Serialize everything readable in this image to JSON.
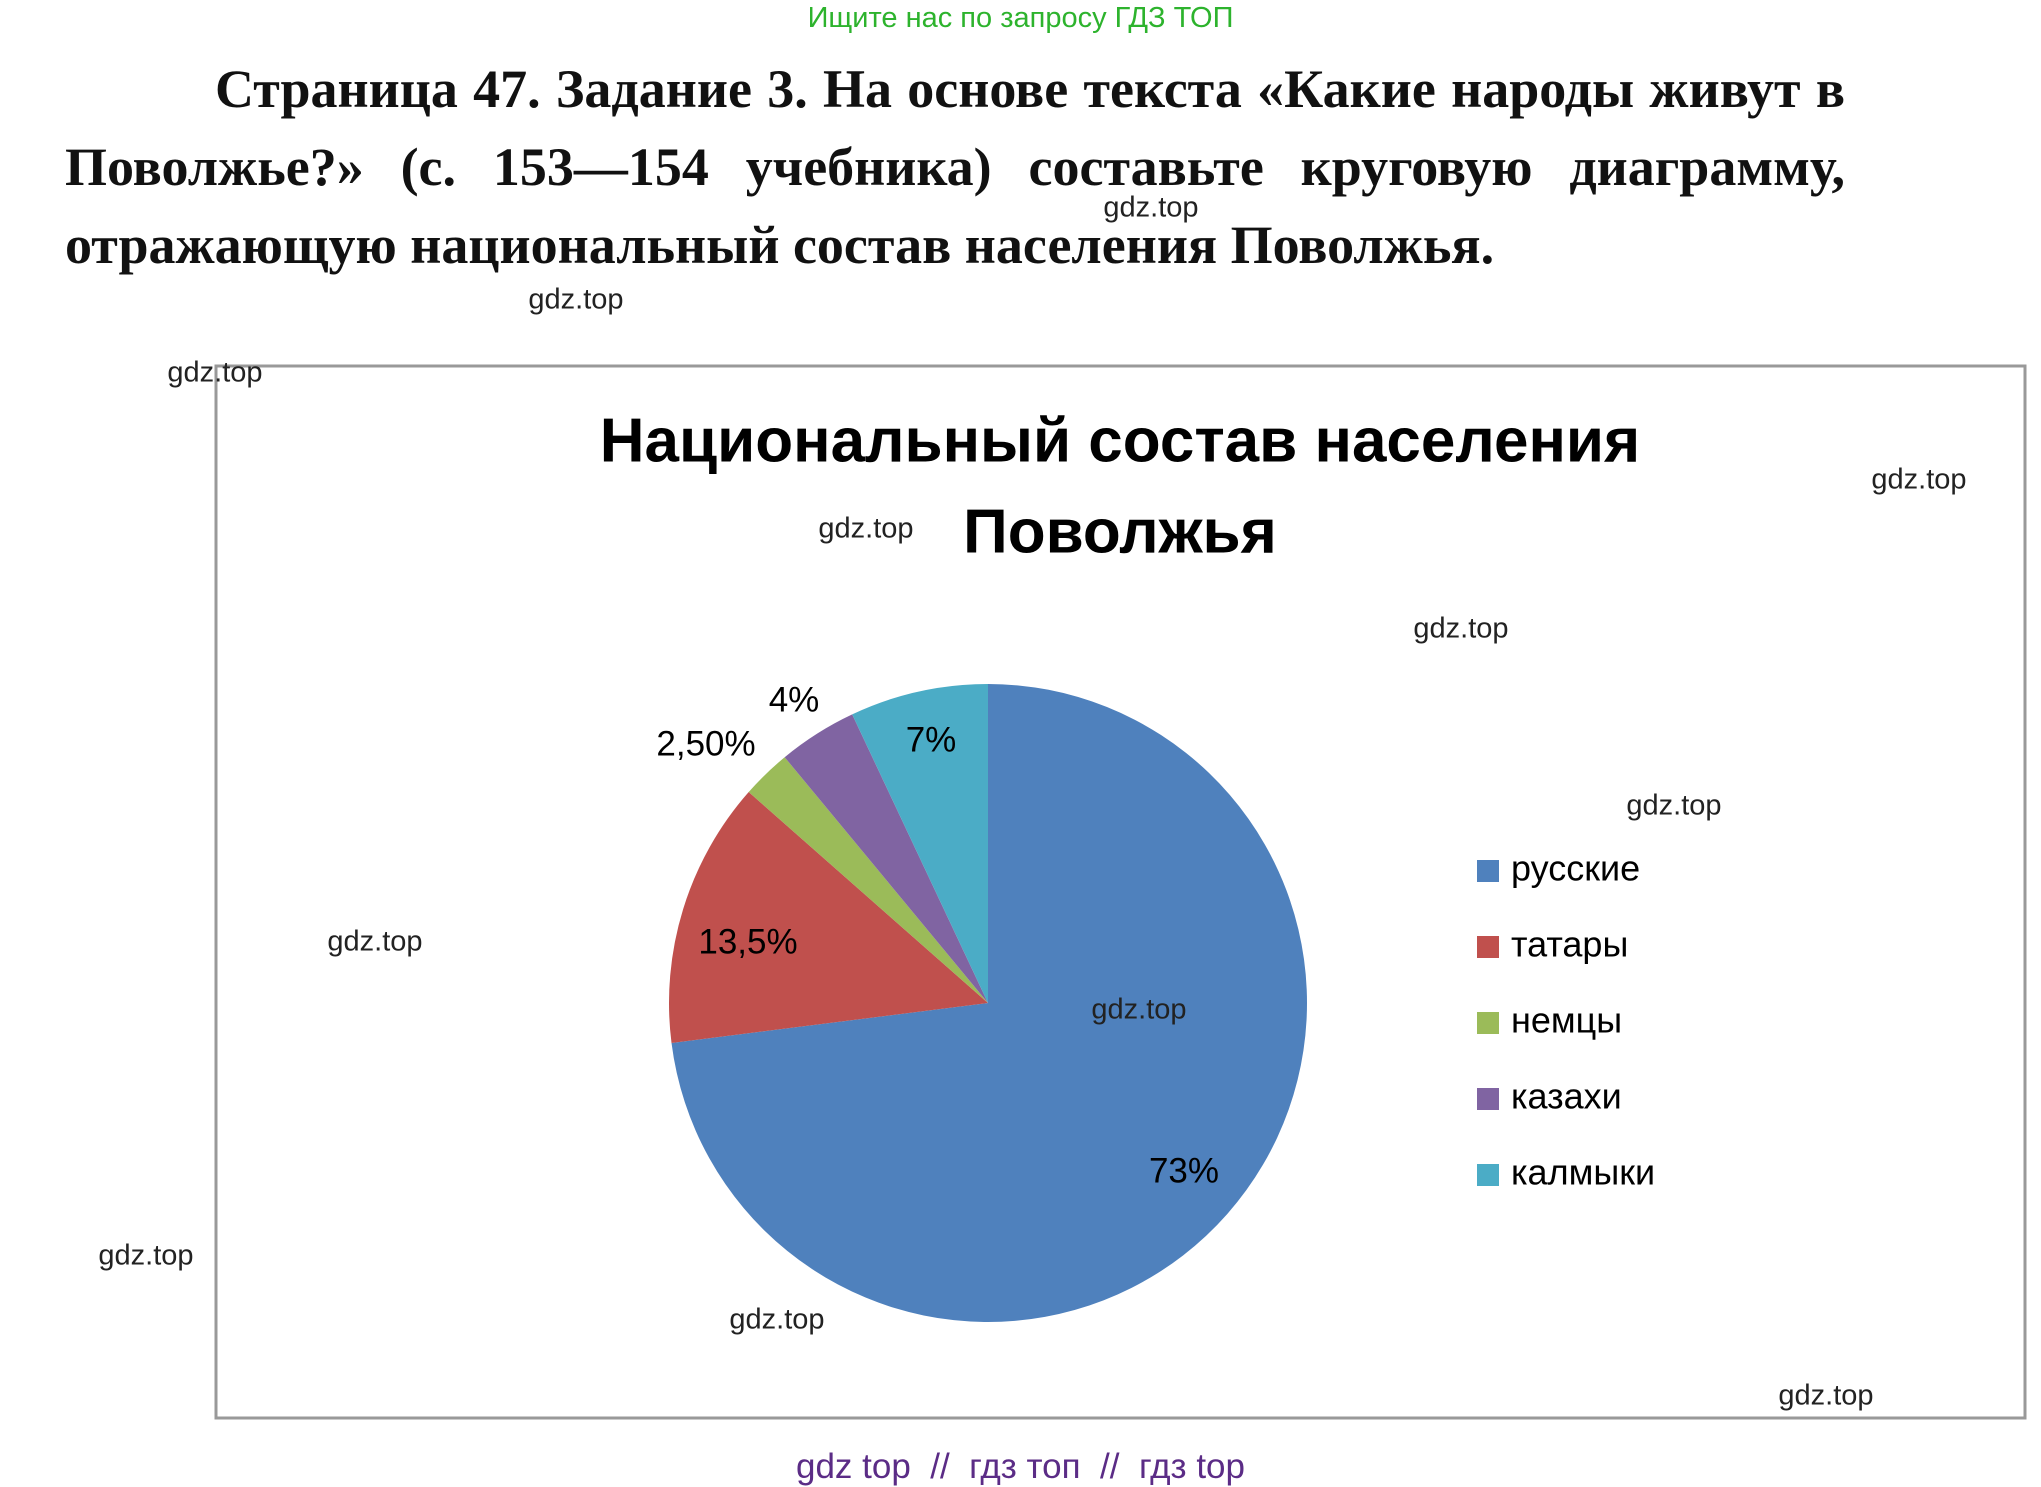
{
  "header": {
    "banner": "Ищите нас по запросу ГДЗ ТОП",
    "task": "Страница 47. Задание 3. На основе текста «Какие народы живут в Поволжье?» (с. 153—154 учебника) составьте круговую диаграмму, отражающую национальный состав населения Поволжья."
  },
  "chart_data": {
    "type": "pie",
    "title_lines": [
      "Национальный состав населения",
      "Поволжья"
    ],
    "categories": [
      "русские",
      "татары",
      "немцы",
      "казахи",
      "калмыки"
    ],
    "values": [
      73,
      13.5,
      2.5,
      4,
      7
    ],
    "value_labels": [
      "73%",
      "13,5%",
      "2,50%",
      "4%",
      "7%"
    ],
    "colors": [
      "#4f81bd",
      "#c0504d",
      "#9bbb59",
      "#8064a2",
      "#4bacc6"
    ],
    "legend": "right"
  },
  "watermarks": [
    "gdz.top",
    "gdz.top",
    "gdz.top",
    "gdz.top",
    "gdz.top",
    "gdz.top",
    "gdz.top",
    "gdz.top",
    "gdz.top",
    "gdz.top",
    "gdz.top",
    "gdz.top"
  ],
  "footer": "gdz top  //  гдз топ  //  гдз top"
}
